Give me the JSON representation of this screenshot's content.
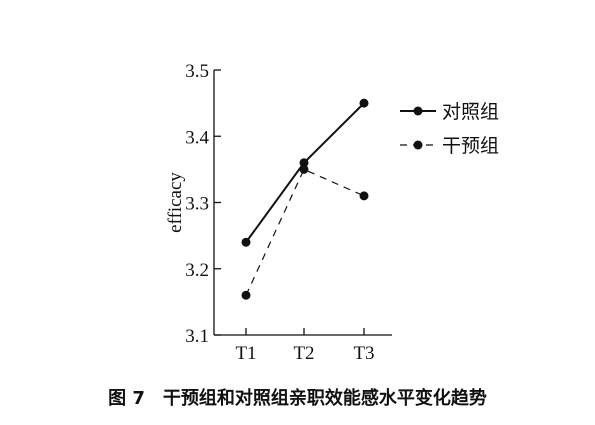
{
  "caption": "图 7　干预组和对照组亲职效能感水平变化趋势",
  "chart_data": {
    "type": "line",
    "categories": [
      "T1",
      "T2",
      "T3"
    ],
    "ylabel": "efficacy",
    "xlabel": "",
    "ylim": [
      3.1,
      3.5
    ],
    "yticks": [
      "3.1",
      "3.2",
      "3.3",
      "3.4",
      "3.5"
    ],
    "grid": false,
    "legend_position": "right",
    "series": [
      {
        "name": "对照组",
        "values": [
          3.24,
          3.36,
          3.45
        ],
        "style": "solid",
        "color": "#111111"
      },
      {
        "name": "干预组",
        "values": [
          3.16,
          3.35,
          3.31
        ],
        "style": "dashed",
        "color": "#111111"
      }
    ]
  }
}
